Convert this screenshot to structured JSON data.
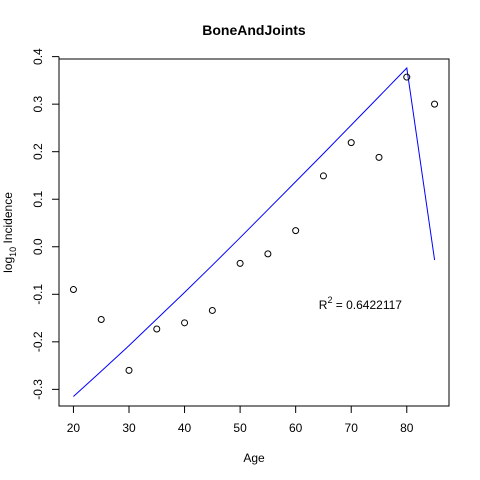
{
  "chart_data": {
    "type": "scatter",
    "title": "BoneAndJoints",
    "xlabel": "Age",
    "ylabel": {
      "prefix": "log",
      "subscript": "10",
      "suffix": " Incidence"
    },
    "xlim": [
      17.4,
      87.6
    ],
    "ylim": [
      -0.335,
      0.395
    ],
    "x_ticks": [
      20,
      30,
      40,
      50,
      60,
      70,
      80
    ],
    "y_ticks": [
      -0.3,
      -0.2,
      -0.1,
      0.0,
      0.1,
      0.2,
      0.3,
      0.4
    ],
    "y_tick_labels": [
      "-0.3",
      "-0.2",
      "-0.1",
      "0.0",
      "0.1",
      "0.2",
      "0.3",
      "0.4"
    ],
    "points": {
      "x": [
        20,
        25,
        30,
        35,
        40,
        45,
        50,
        55,
        60,
        65,
        70,
        75,
        80,
        85
      ],
      "y": [
        -0.09,
        -0.153,
        -0.26,
        -0.173,
        -0.16,
        -0.134,
        -0.035,
        -0.015,
        0.034,
        0.149,
        0.219,
        0.188,
        0.357,
        0.3
      ],
      "marker": "open-circle",
      "color": "#000000"
    },
    "fit_line": {
      "x": [
        20,
        25,
        30,
        35,
        40,
        45,
        50,
        55,
        60,
        65,
        70,
        75,
        80,
        85
      ],
      "y": [
        -0.315,
        -0.262,
        -0.208,
        -0.152,
        -0.096,
        -0.039,
        0.019,
        0.078,
        0.137,
        0.196,
        0.256,
        0.316,
        0.376,
        -0.028
      ],
      "color": "#0000ff"
    },
    "annotation": {
      "r_label": "R",
      "r_superscript": "2",
      "text": " = 0.6422117",
      "x": 62,
      "y": -0.12
    }
  }
}
